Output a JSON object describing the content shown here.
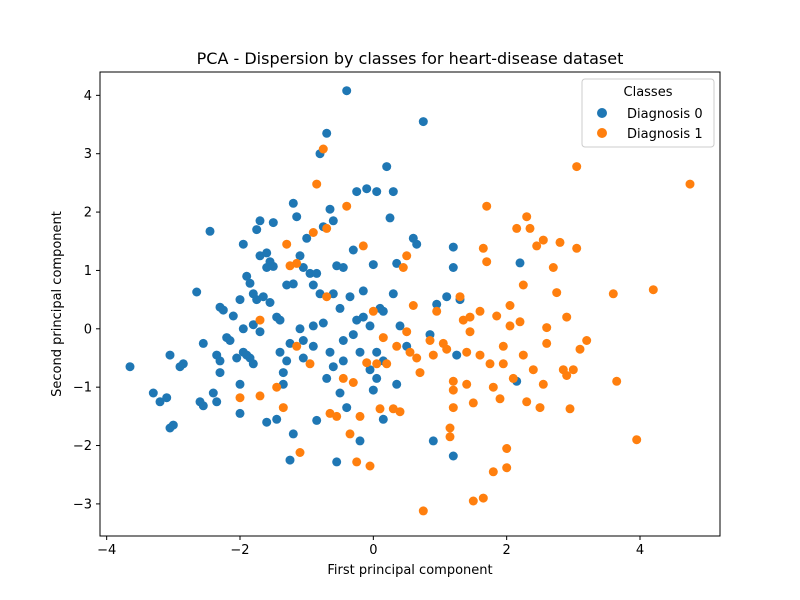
{
  "chart_data": {
    "type": "scatter",
    "title": "PCA - Dispersion by classes for heart-disease dataset",
    "xlabel": "First principal component",
    "ylabel": "Second principal component",
    "xlim": [
      -4.1,
      5.2
    ],
    "ylim": [
      -3.55,
      4.4
    ],
    "xticks": [
      -4,
      -2,
      0,
      2,
      4
    ],
    "yticks": [
      -3,
      -2,
      -1,
      0,
      1,
      2,
      3,
      4
    ],
    "xtick_labels": [
      "−4",
      "−2",
      "0",
      "2",
      "4"
    ],
    "ytick_labels": [
      "−3",
      "−2",
      "−1",
      "0",
      "1",
      "2",
      "3",
      "4"
    ],
    "grid": false,
    "legend": {
      "title": "Classes",
      "position": "top-right"
    },
    "colors": {
      "diagnosis_0": "#1f77b4",
      "diagnosis_1": "#ff7f0e"
    },
    "series": [
      {
        "name": "Diagnosis 0",
        "points": [
          [
            -3.65,
            -0.65
          ],
          [
            -3.3,
            -1.1
          ],
          [
            -3.2,
            -1.25
          ],
          [
            -3.1,
            -1.18
          ],
          [
            -3.05,
            -0.45
          ],
          [
            -3.05,
            -1.7
          ],
          [
            -3.0,
            -1.65
          ],
          [
            -2.9,
            -0.65
          ],
          [
            -2.85,
            -0.6
          ],
          [
            -2.65,
            0.63
          ],
          [
            -2.6,
            -1.25
          ],
          [
            -2.55,
            -1.32
          ],
          [
            -2.55,
            -0.25
          ],
          [
            -2.45,
            1.67
          ],
          [
            -2.4,
            -1.1
          ],
          [
            -2.35,
            -0.45
          ],
          [
            -2.35,
            -1.25
          ],
          [
            -2.3,
            0.37
          ],
          [
            -2.3,
            -0.75
          ],
          [
            -2.25,
            0.32
          ],
          [
            -2.2,
            -0.15
          ],
          [
            -2.15,
            -0.2
          ],
          [
            -2.1,
            0.22
          ],
          [
            -2.05,
            -0.5
          ],
          [
            -2.0,
            -0.95
          ],
          [
            -2.0,
            0.5
          ],
          [
            -1.95,
            1.45
          ],
          [
            -1.95,
            0.0
          ],
          [
            -1.9,
            0.9
          ],
          [
            -1.9,
            -0.45
          ],
          [
            -1.85,
            0.78
          ],
          [
            -1.85,
            -0.5
          ],
          [
            -1.8,
            0.07
          ],
          [
            -1.8,
            0.6
          ],
          [
            -1.8,
            -0.6
          ],
          [
            -1.75,
            1.7
          ],
          [
            -1.75,
            0.5
          ],
          [
            -1.7,
            1.85
          ],
          [
            -1.7,
            1.25
          ],
          [
            -1.65,
            0.55
          ],
          [
            -1.6,
            1.3
          ],
          [
            -1.6,
            1.05
          ],
          [
            -1.55,
            1.15
          ],
          [
            -1.55,
            0.45
          ],
          [
            -1.5,
            1.82
          ],
          [
            -1.5,
            1.07
          ],
          [
            -1.45,
            0.2
          ],
          [
            -1.4,
            -0.4
          ],
          [
            -1.4,
            0.15
          ],
          [
            -1.35,
            -0.75
          ],
          [
            -1.3,
            0.75
          ],
          [
            -1.3,
            -0.55
          ],
          [
            -1.25,
            -0.25
          ],
          [
            -1.25,
            -2.25
          ],
          [
            -1.2,
            2.15
          ],
          [
            -1.2,
            0.77
          ],
          [
            -1.2,
            -1.8
          ],
          [
            -1.15,
            1.92
          ],
          [
            -1.1,
            1.25
          ],
          [
            -1.1,
            0.0
          ],
          [
            -1.05,
            1.05
          ],
          [
            -1.05,
            -0.5
          ],
          [
            -1.0,
            1.55
          ],
          [
            -0.95,
            0.95
          ],
          [
            -0.9,
            0.75
          ],
          [
            -0.9,
            -0.3
          ],
          [
            -0.85,
            0.95
          ],
          [
            -0.85,
            -1.57
          ],
          [
            -0.8,
            3.0
          ],
          [
            -0.8,
            0.6
          ],
          [
            -0.75,
            1.75
          ],
          [
            -0.75,
            0.1
          ],
          [
            -0.7,
            3.35
          ],
          [
            -0.7,
            -0.85
          ],
          [
            -0.65,
            2.05
          ],
          [
            -0.65,
            -0.4
          ],
          [
            -0.6,
            1.85
          ],
          [
            -0.6,
            0.6
          ],
          [
            -0.55,
            1.08
          ],
          [
            -0.5,
            0.35
          ],
          [
            -0.5,
            -1.1
          ],
          [
            -0.45,
            1.05
          ],
          [
            -0.45,
            -0.55
          ],
          [
            -0.4,
            4.08
          ],
          [
            -0.4,
            -1.35
          ],
          [
            -0.35,
            0.55
          ],
          [
            -0.3,
            1.35
          ],
          [
            -0.25,
            2.35
          ],
          [
            -0.2,
            -0.4
          ],
          [
            -0.2,
            -1.92
          ],
          [
            -0.15,
            0.2
          ],
          [
            -0.1,
            2.4
          ],
          [
            -0.05,
            -0.7
          ],
          [
            0.0,
            1.1
          ],
          [
            0.05,
            2.35
          ],
          [
            0.05,
            -0.85
          ],
          [
            0.1,
            0.35
          ],
          [
            0.15,
            -0.55
          ],
          [
            0.2,
            2.78
          ],
          [
            0.25,
            1.9
          ],
          [
            0.3,
            2.35
          ],
          [
            0.3,
            0.6
          ],
          [
            0.35,
            1.12
          ],
          [
            0.4,
            0.05
          ],
          [
            0.5,
            -0.3
          ],
          [
            0.6,
            1.55
          ],
          [
            0.65,
            1.45
          ],
          [
            0.75,
            3.55
          ],
          [
            0.85,
            -0.1
          ],
          [
            0.9,
            -1.92
          ],
          [
            0.95,
            0.42
          ],
          [
            1.1,
            0.55
          ],
          [
            1.2,
            1.05
          ],
          [
            1.2,
            1.4
          ],
          [
            1.2,
            -2.18
          ],
          [
            1.25,
            -0.45
          ],
          [
            1.3,
            0.5
          ],
          [
            2.15,
            -0.9
          ],
          [
            2.2,
            1.13
          ],
          [
            -0.3,
            -0.1
          ],
          [
            0.05,
            -0.4
          ],
          [
            -1.35,
            -0.95
          ],
          [
            -1.6,
            -1.6
          ],
          [
            -2.0,
            -1.45
          ],
          [
            -1.45,
            -1.55
          ],
          [
            -0.55,
            -2.28
          ],
          [
            0.15,
            -1.55
          ],
          [
            0.0,
            -1.05
          ],
          [
            -0.05,
            0.05
          ],
          [
            -0.25,
            0.15
          ],
          [
            -0.6,
            -0.65
          ],
          [
            -0.15,
            0.65
          ],
          [
            0.15,
            0.3
          ],
          [
            -1.05,
            -0.2
          ],
          [
            -1.95,
            -0.4
          ],
          [
            -2.3,
            -0.55
          ],
          [
            -1.7,
            -0.05
          ],
          [
            -0.9,
            0.05
          ],
          [
            -0.45,
            -0.2
          ],
          [
            0.35,
            -0.95
          ]
        ]
      },
      {
        "name": "Diagnosis 1",
        "points": [
          [
            -2.0,
            -1.18
          ],
          [
            -1.7,
            0.15
          ],
          [
            -1.7,
            -1.15
          ],
          [
            -1.45,
            -1.0
          ],
          [
            -1.35,
            -1.35
          ],
          [
            -1.3,
            1.45
          ],
          [
            -1.25,
            1.08
          ],
          [
            -1.15,
            1.12
          ],
          [
            -1.15,
            -0.3
          ],
          [
            -1.1,
            -2.12
          ],
          [
            -0.95,
            -0.6
          ],
          [
            -0.9,
            1.65
          ],
          [
            -0.85,
            2.48
          ],
          [
            -0.75,
            3.08
          ],
          [
            -0.7,
            1.72
          ],
          [
            -0.7,
            0.55
          ],
          [
            -0.65,
            -1.45
          ],
          [
            -0.55,
            -1.5
          ],
          [
            -0.45,
            -0.85
          ],
          [
            -0.4,
            2.1
          ],
          [
            -0.35,
            -1.8
          ],
          [
            -0.3,
            -0.92
          ],
          [
            -0.25,
            -2.28
          ],
          [
            -0.2,
            -1.5
          ],
          [
            -0.15,
            1.42
          ],
          [
            -0.1,
            -0.58
          ],
          [
            -0.05,
            -2.35
          ],
          [
            0.0,
            0.3
          ],
          [
            0.05,
            -0.6
          ],
          [
            0.1,
            -1.37
          ],
          [
            0.15,
            -0.15
          ],
          [
            0.2,
            -0.6
          ],
          [
            0.3,
            -1.37
          ],
          [
            0.35,
            -0.3
          ],
          [
            0.4,
            -1.42
          ],
          [
            0.45,
            1.05
          ],
          [
            0.5,
            1.25
          ],
          [
            0.55,
            -0.4
          ],
          [
            0.6,
            0.4
          ],
          [
            0.65,
            -0.5
          ],
          [
            0.7,
            -0.75
          ],
          [
            0.75,
            -3.12
          ],
          [
            0.85,
            -0.2
          ],
          [
            0.95,
            0.3
          ],
          [
            1.05,
            -0.25
          ],
          [
            1.1,
            -0.35
          ],
          [
            1.15,
            -1.7
          ],
          [
            1.15,
            -1.85
          ],
          [
            1.2,
            -0.9
          ],
          [
            1.2,
            -1.05
          ],
          [
            1.2,
            -1.35
          ],
          [
            1.3,
            0.55
          ],
          [
            1.35,
            0.15
          ],
          [
            1.4,
            -0.4
          ],
          [
            1.45,
            0.2
          ],
          [
            1.5,
            -1.27
          ],
          [
            1.5,
            -2.95
          ],
          [
            1.6,
            -0.45
          ],
          [
            1.65,
            1.38
          ],
          [
            1.65,
            -2.9
          ],
          [
            1.7,
            2.1
          ],
          [
            1.7,
            1.15
          ],
          [
            1.75,
            -0.6
          ],
          [
            1.8,
            -2.45
          ],
          [
            1.85,
            0.22
          ],
          [
            1.9,
            -1.2
          ],
          [
            1.95,
            -0.3
          ],
          [
            1.95,
            -0.6
          ],
          [
            2.0,
            -2.38
          ],
          [
            2.0,
            -2.05
          ],
          [
            2.05,
            0.4
          ],
          [
            2.1,
            -0.85
          ],
          [
            2.15,
            1.72
          ],
          [
            2.2,
            0.12
          ],
          [
            2.25,
            0.75
          ],
          [
            2.25,
            -0.45
          ],
          [
            2.3,
            1.92
          ],
          [
            2.3,
            -1.25
          ],
          [
            2.35,
            1.72
          ],
          [
            2.4,
            -0.7
          ],
          [
            2.45,
            1.42
          ],
          [
            2.5,
            -1.35
          ],
          [
            2.55,
            1.52
          ],
          [
            2.6,
            0.02
          ],
          [
            2.6,
            -0.25
          ],
          [
            2.7,
            1.05
          ],
          [
            2.75,
            0.62
          ],
          [
            2.8,
            1.48
          ],
          [
            2.85,
            -0.7
          ],
          [
            2.9,
            -0.8
          ],
          [
            2.9,
            0.2
          ],
          [
            2.95,
            -1.37
          ],
          [
            3.0,
            -0.7
          ],
          [
            3.05,
            1.38
          ],
          [
            3.05,
            2.78
          ],
          [
            3.1,
            -0.35
          ],
          [
            3.2,
            -0.2
          ],
          [
            3.65,
            -0.9
          ],
          [
            3.6,
            0.6
          ],
          [
            3.95,
            -1.9
          ],
          [
            4.2,
            0.67
          ],
          [
            4.75,
            2.48
          ],
          [
            1.4,
            -0.95
          ],
          [
            1.6,
            0.3
          ],
          [
            1.8,
            -1.0
          ],
          [
            2.05,
            0.05
          ],
          [
            0.5,
            -0.05
          ],
          [
            0.9,
            -0.45
          ],
          [
            1.45,
            -0.05
          ],
          [
            2.55,
            -0.95
          ]
        ]
      }
    ]
  }
}
